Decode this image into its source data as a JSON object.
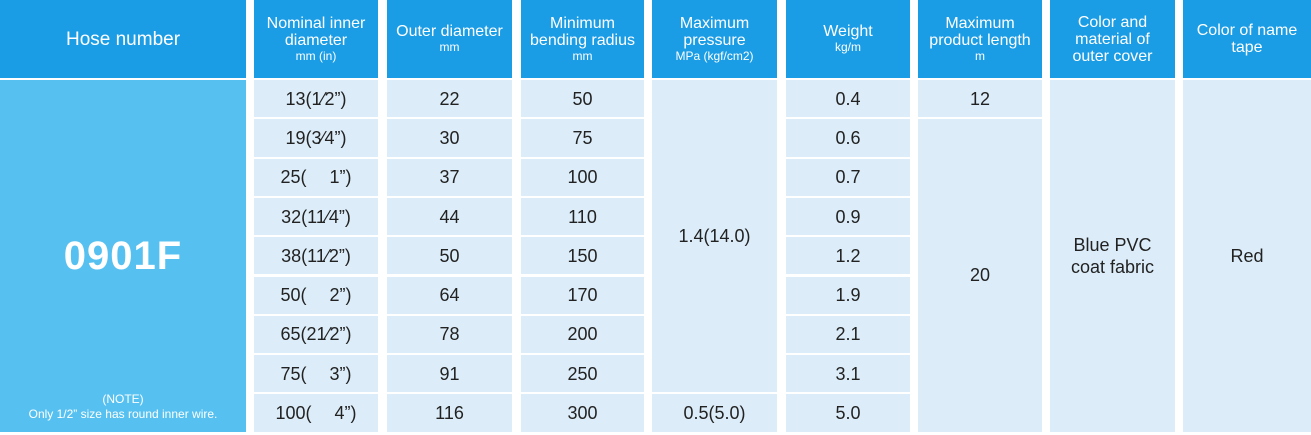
{
  "table": {
    "columns": [
      {
        "label": "Hose number"
      },
      {
        "label": "Nominal inner diameter",
        "unit": "mm (in)"
      },
      {
        "label": "Outer diameter",
        "unit": "mm"
      },
      {
        "label": "Minimum bending radius",
        "unit": "mm"
      },
      {
        "label": "Maximum pressure",
        "unit": "MPa (kgf/cm2)"
      },
      {
        "label": "Weight",
        "unit": "kg/m"
      },
      {
        "label": "Maximum product length",
        "unit": "m"
      },
      {
        "label": "Color and material of outer cover"
      },
      {
        "label": "Color of name tape"
      }
    ],
    "hose_number": "0901F",
    "note": [
      "(NOTE)",
      "Only 1/2” size has round inner wire."
    ],
    "rows": [
      [
        "13(1⁄2”)",
        "22",
        "50",
        "0.4"
      ],
      [
        "19(3⁄4”)",
        "30",
        "75",
        "0.6"
      ],
      [
        "25(  1”)",
        "37",
        "100",
        "0.7"
      ],
      [
        "32(11⁄4”)",
        "44",
        "110",
        "0.9"
      ],
      [
        "38(11⁄2”)",
        "50",
        "150",
        "1.2"
      ],
      [
        "50(  2”)",
        "64",
        "170",
        "1.9"
      ],
      [
        "65(21⁄2”)",
        "78",
        "200",
        "2.1"
      ],
      [
        "75(  3”)",
        "91",
        "250",
        "3.1"
      ],
      [
        "100(  4”)",
        "116",
        "300",
        "5.0"
      ]
    ],
    "pressure": [
      "1.4(14.0)",
      null,
      null,
      null,
      null,
      null,
      null,
      null,
      "0.5(5.0)"
    ],
    "length": [
      "12",
      "20",
      null,
      null,
      null,
      null,
      null,
      null,
      null
    ],
    "cover": "Blue PVC coat fabric",
    "tape": "Red"
  }
}
